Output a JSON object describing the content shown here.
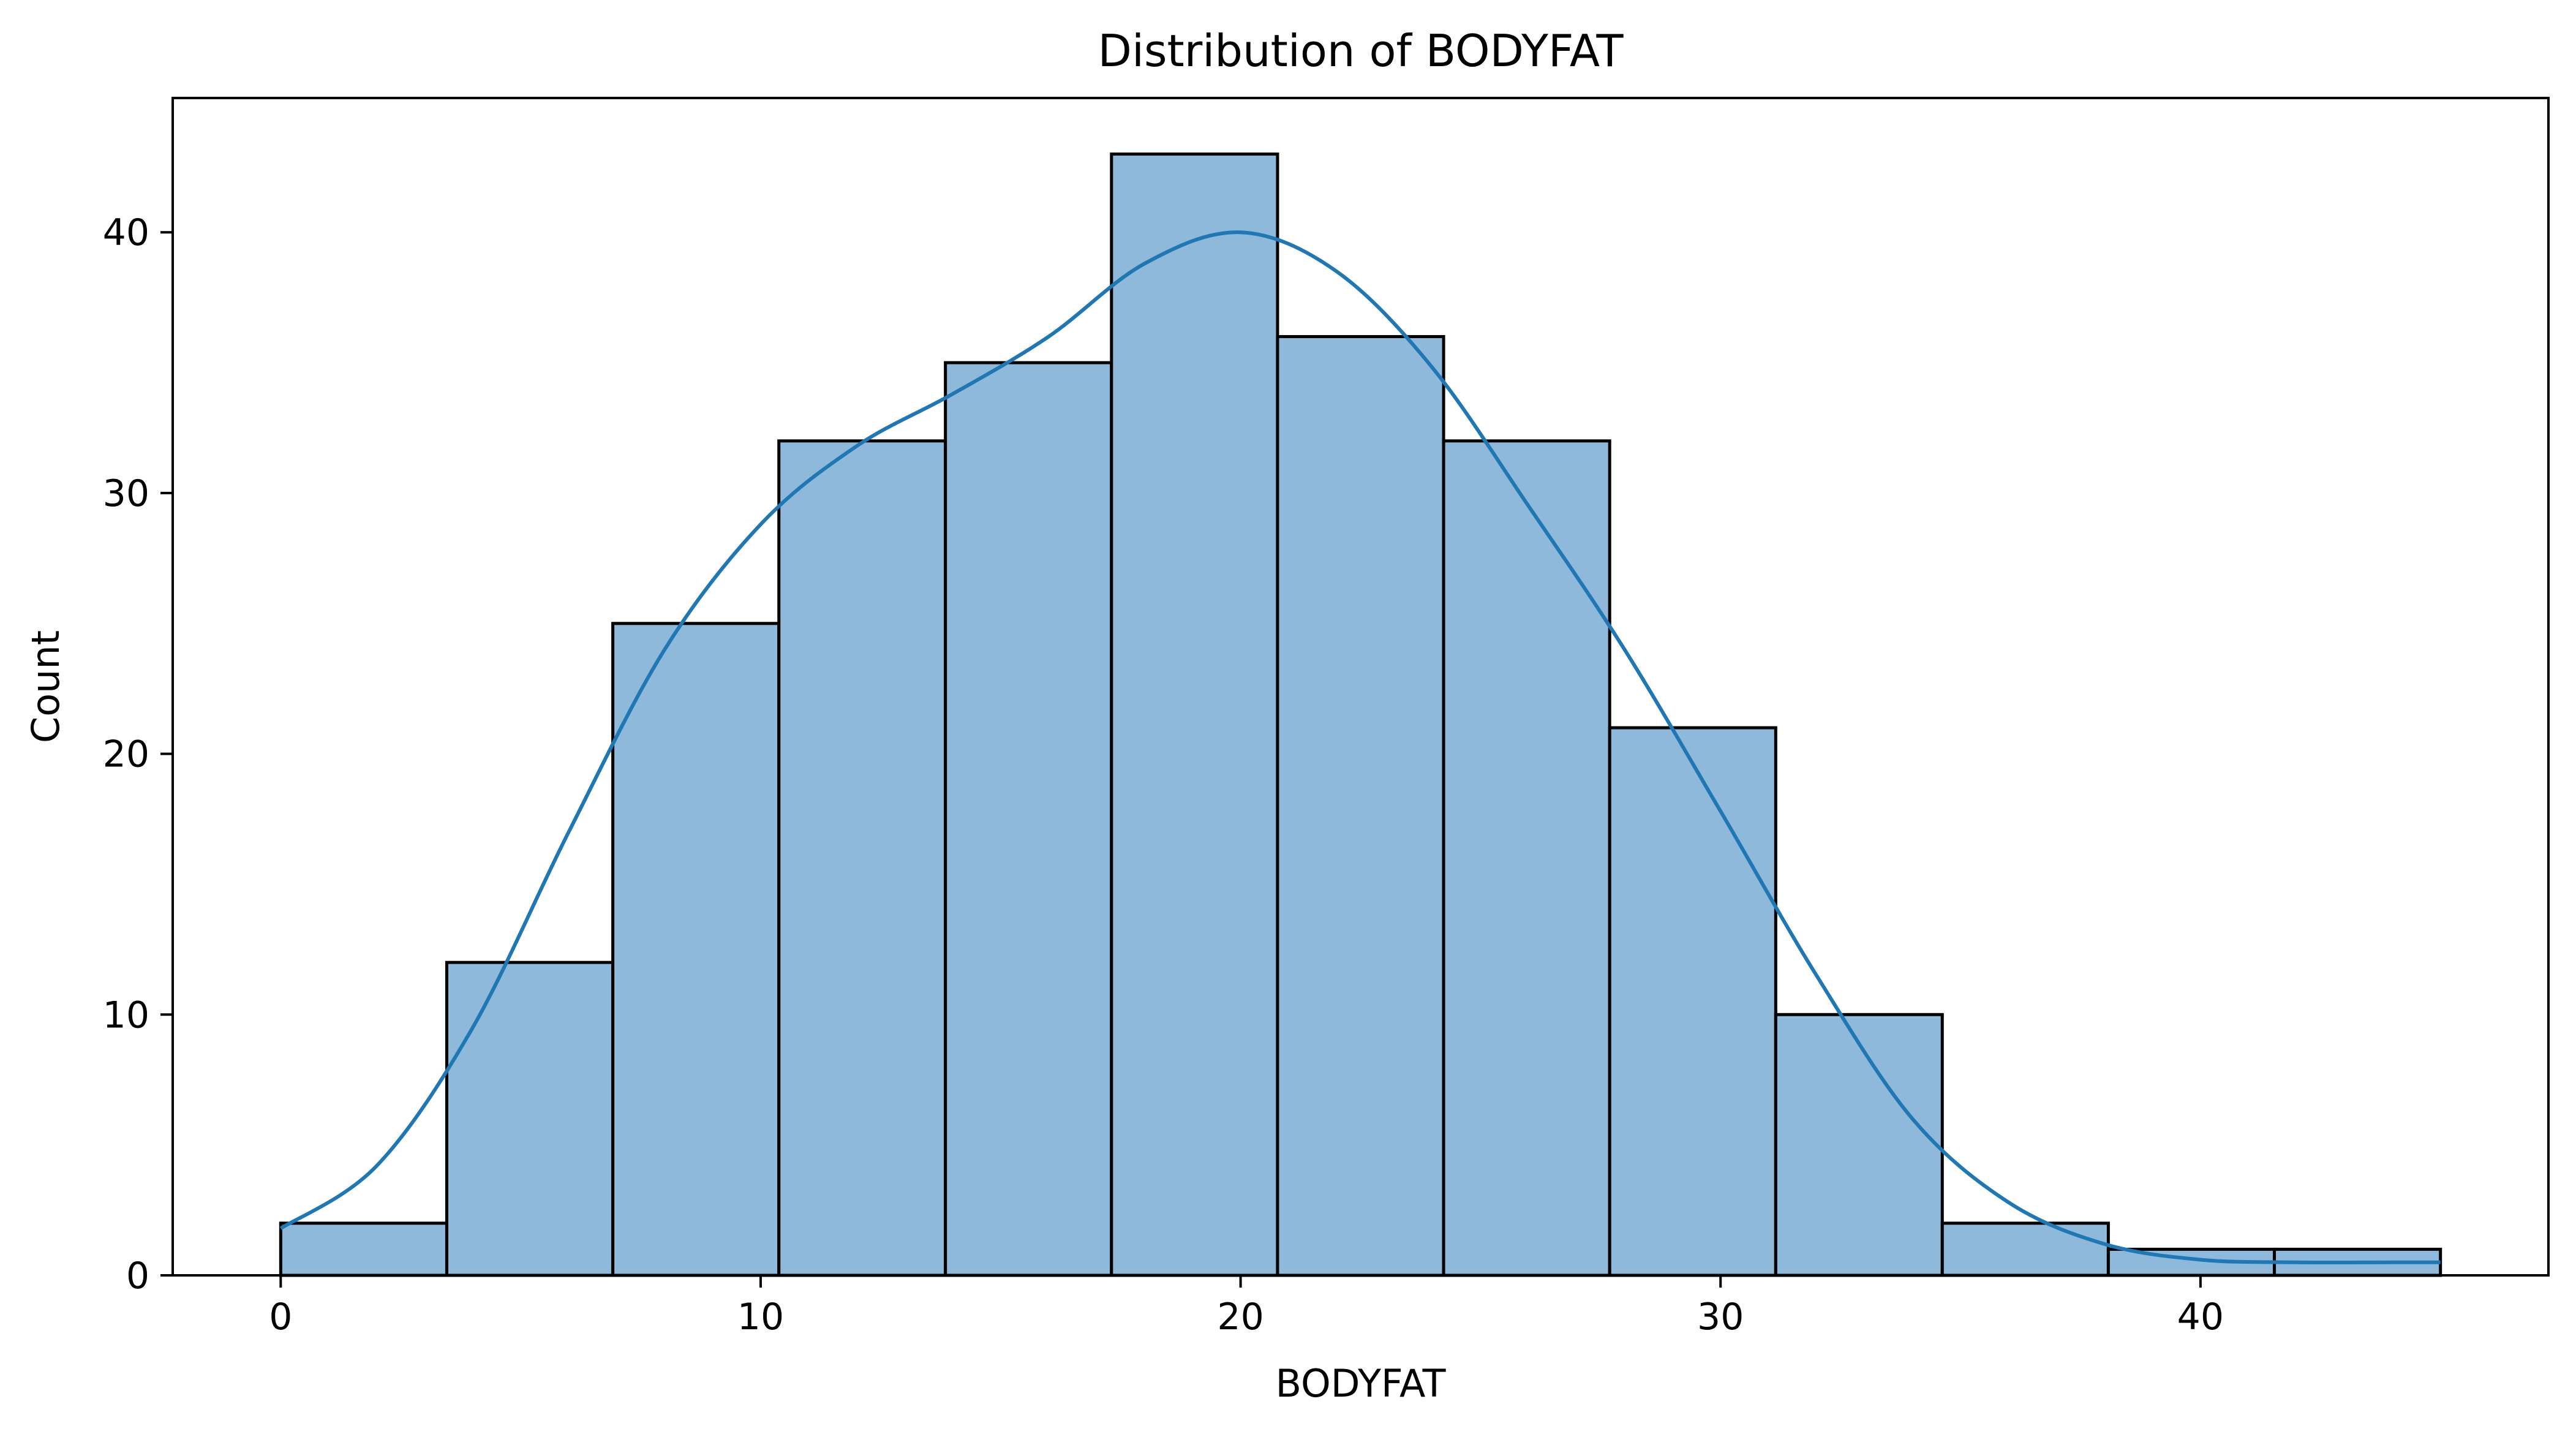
{
  "chart_data": {
    "type": "bar",
    "title": "Distribution of BODYFAT",
    "xlabel": "BODYFAT",
    "ylabel": "Count",
    "bin_edges": [
      0,
      3.46,
      6.92,
      10.38,
      13.85,
      17.31,
      20.77,
      24.23,
      27.69,
      31.15,
      34.62,
      38.08,
      41.54,
      45.0
    ],
    "values": [
      2,
      12,
      25,
      32,
      35,
      43,
      36,
      32,
      21,
      10,
      2,
      1,
      1
    ],
    "kde": {
      "x": [
        0,
        2,
        4,
        6,
        8,
        10,
        12,
        14,
        16,
        18,
        20,
        22,
        24,
        26,
        28,
        30,
        32,
        34,
        36,
        38,
        40,
        42,
        44,
        45
      ],
      "y": [
        1.8,
        4.2,
        9.5,
        17.0,
        24.0,
        28.8,
        31.8,
        33.8,
        36.0,
        38.8,
        40.0,
        38.5,
        34.8,
        29.5,
        24.0,
        17.8,
        11.5,
        6.0,
        2.8,
        1.2,
        0.6,
        0.5,
        0.5,
        0.5
      ]
    },
    "xticks": [
      0,
      10,
      20,
      30,
      40
    ],
    "yticks": [
      0,
      10,
      20,
      30,
      40
    ],
    "xlim": [
      -2.25,
      47.25
    ],
    "ylim": [
      0,
      45.15
    ],
    "grid": false,
    "colors": {
      "bar_fill": "#8fb9da",
      "bar_edge": "#000000",
      "kde_line": "#1f77b4"
    }
  }
}
